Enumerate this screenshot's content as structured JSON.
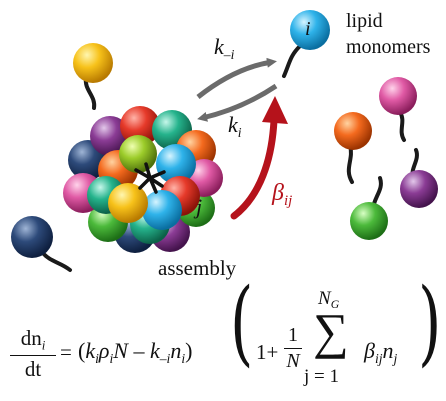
{
  "labels": {
    "monomer": "i",
    "lipid_line1": "lipid",
    "lipid_line2": "monomers",
    "k_minus_i": {
      "base": "k",
      "sub": "–i"
    },
    "k_i": {
      "base": "k",
      "sub": "i"
    },
    "beta_ij": {
      "base": "β",
      "sub": "ij"
    },
    "j": "j",
    "assembly": "assembly"
  },
  "equation": {
    "dn": "dn",
    "dt": "dt",
    "i": "i",
    "equals": "=",
    "lparen1": "(",
    "rparen1": ")",
    "k": "k",
    "rho": "ρ",
    "N": "N",
    "minus": "–",
    "minus_i": "–i",
    "n": "n",
    "lparen2": "(",
    "rparen2": ")",
    "one_plus": "1+",
    "one": "1",
    "G": "G",
    "sigma": "∑",
    "sum_lower": "j = 1",
    "beta": "β",
    "ij": "ij",
    "j": "j"
  },
  "colors": {
    "beta_arrow": "#b5121b",
    "exchange_arrows": "#6b6b6b"
  }
}
